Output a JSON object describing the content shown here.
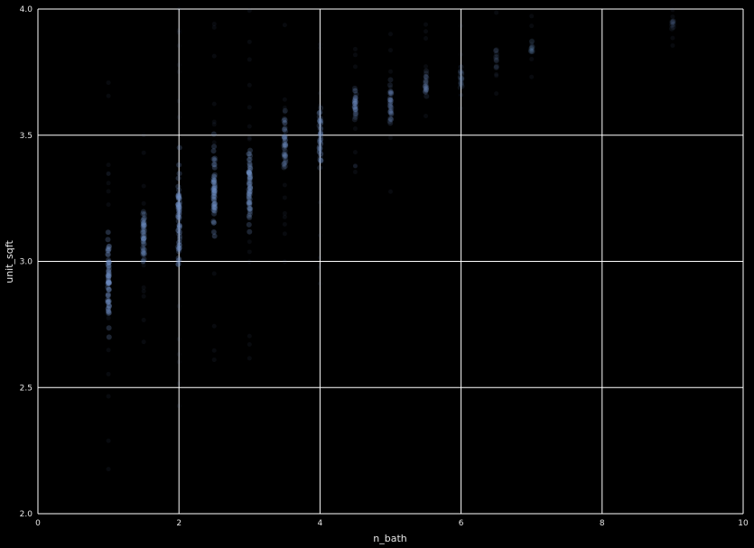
{
  "chart_data": {
    "type": "scatter",
    "title": "",
    "xlabel": "n_bath",
    "ylabel": "unit_sqft",
    "xlim": [
      0,
      10
    ],
    "ylim": [
      2.0,
      4.0
    ],
    "grid": true,
    "legend": "none",
    "background_color": "#000000",
    "grid_color": "#ffffff",
    "point_color": "#6f8fc4",
    "x_ticks": [
      {
        "value": 0,
        "label": "0"
      },
      {
        "value": 2,
        "label": "2"
      },
      {
        "value": 4,
        "label": "4"
      },
      {
        "value": 6,
        "label": "6"
      },
      {
        "value": 8,
        "label": "8"
      },
      {
        "value": 10,
        "label": "10"
      }
    ],
    "y_ticks": [
      {
        "value": 2.0,
        "label": "2.0"
      },
      {
        "value": 2.5,
        "label": "2.5"
      },
      {
        "value": 3.0,
        "label": "3.0"
      },
      {
        "value": 3.5,
        "label": "3.5"
      },
      {
        "value": 4.0,
        "label": "4.0"
      }
    ],
    "series": [
      {
        "clusters": [
          {
            "x": 1.0,
            "y_min": 2.55,
            "y_max": 3.3,
            "y_center": 2.95,
            "density": 1.0
          },
          {
            "x": 1.5,
            "y_min": 2.9,
            "y_max": 3.3,
            "y_center": 3.08,
            "density": 0.7
          },
          {
            "x": 2.0,
            "y_min": 2.8,
            "y_max": 3.55,
            "y_center": 3.2,
            "density": 1.0
          },
          {
            "x": 2.5,
            "y_min": 2.95,
            "y_max": 3.6,
            "y_center": 3.3,
            "density": 0.9
          },
          {
            "x": 3.0,
            "y_min": 2.95,
            "y_max": 3.65,
            "y_center": 3.3,
            "density": 0.95
          },
          {
            "x": 3.5,
            "y_min": 3.2,
            "y_max": 3.7,
            "y_center": 3.45,
            "density": 0.6
          },
          {
            "x": 4.0,
            "y_min": 3.2,
            "y_max": 3.75,
            "y_center": 3.5,
            "density": 0.65
          },
          {
            "x": 4.5,
            "y_min": 3.5,
            "y_max": 3.75,
            "y_center": 3.62,
            "density": 0.45
          },
          {
            "x": 5.0,
            "y_min": 3.45,
            "y_max": 3.8,
            "y_center": 3.62,
            "density": 0.45
          },
          {
            "x": 5.5,
            "y_min": 3.6,
            "y_max": 3.8,
            "y_center": 3.72,
            "density": 0.3
          },
          {
            "x": 6.0,
            "y_min": 3.6,
            "y_max": 3.85,
            "y_center": 3.73,
            "density": 0.2
          },
          {
            "x": 6.5,
            "y_min": 3.7,
            "y_max": 3.9,
            "y_center": 3.8,
            "density": 0.1
          },
          {
            "x": 7.0,
            "y_min": 3.75,
            "y_max": 3.95,
            "y_center": 3.85,
            "density": 0.12
          },
          {
            "x": 9.0,
            "y_min": 3.9,
            "y_max": 4.0,
            "y_center": 3.95,
            "density": 0.05
          }
        ]
      }
    ]
  }
}
